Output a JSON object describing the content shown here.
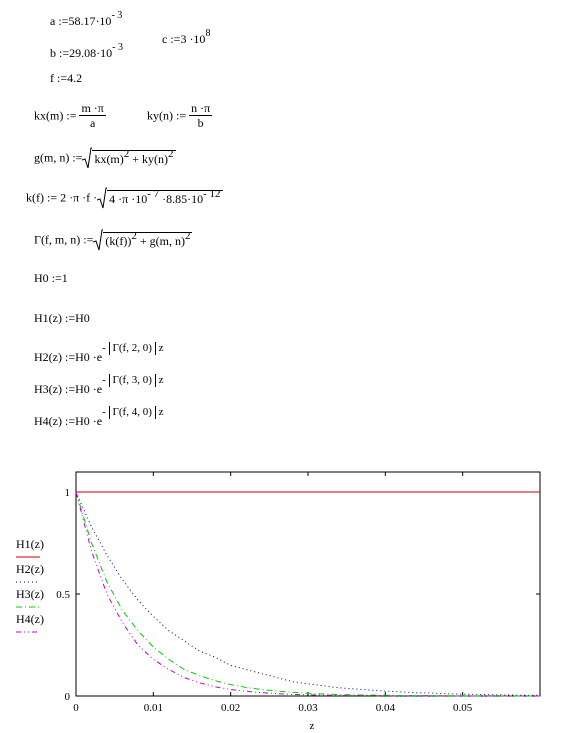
{
  "definitions": {
    "a": {
      "lhs": "a :=",
      "mant": "58.17",
      "dot": "·10",
      "exp": "- 3"
    },
    "b": {
      "lhs": "b :=",
      "mant": "29.08",
      "dot": "·10",
      "exp": "- 3"
    },
    "c": {
      "lhs": "c :=",
      "mant": "3",
      "dot": " ·10",
      "exp": "8"
    },
    "f": {
      "lhs": "f :=",
      "value": "4.2"
    },
    "kx": {
      "lhs": "kx(m) :=",
      "num": "m ·π",
      "den": "a"
    },
    "ky": {
      "lhs": "ky(n) :=",
      "num": "n ·π",
      "den": "b"
    },
    "g": {
      "lhs": "g(m, n) :=",
      "t1": "kx(m)",
      "e1": "2",
      "plus": " + ky(n)",
      "e2": "2"
    },
    "k": {
      "lhs": "k(f) :=",
      "pre": "2 ·π ·f ·",
      "r1": "4 ·π ·10",
      "e1": "- 7",
      "r2": " ·8.85·10",
      "e2": "- 12"
    },
    "Gamma": {
      "lhs": "Γ(f, m, n) :=",
      "t1": "(k(f))",
      "e1": "2",
      "plus": " + g(m, n)",
      "e2": "2"
    },
    "H0": {
      "lhs": "H0 :=",
      "value": "1"
    },
    "H1": {
      "lhs": "H1(z) :=",
      "rhs": "H0"
    },
    "H2": {
      "lhs": "H2(z) :=",
      "pre": "H0 ·e",
      "minus": "-",
      "arg": "Γ(f, 2, 0)",
      "z": "z"
    },
    "H3": {
      "lhs": "H3(z) :=",
      "pre": "H0 ·e",
      "minus": "-",
      "arg": "Γ(f, 3, 0)",
      "z": "z"
    },
    "H4": {
      "lhs": "H4(z) :=",
      "pre": "H0 ·e",
      "minus": "-",
      "arg": "Γ(f, 4, 0)",
      "z": "z"
    }
  },
  "chart_data": {
    "type": "line",
    "xlabel": "z",
    "ylabel": "",
    "xlim": [
      0,
      0.06
    ],
    "ylim": [
      0,
      1
    ],
    "x_ticks": [
      "0",
      "0.01",
      "0.02",
      "0.03",
      "0.04",
      "0.05"
    ],
    "y_ticks": [
      "0",
      "0.5",
      "1"
    ],
    "legend_placement": "left",
    "grid": false,
    "x": [
      0,
      0.002,
      0.004,
      0.006,
      0.008,
      0.01,
      0.012,
      0.014,
      0.016,
      0.018,
      0.02,
      0.022,
      0.024,
      0.026,
      0.028,
      0.03,
      0.032,
      0.034,
      0.036,
      0.038,
      0.04,
      0.042,
      0.044,
      0.046,
      0.048,
      0.05,
      0.052,
      0.054,
      0.056,
      0.058,
      0.06
    ],
    "series": [
      {
        "name": "H1(z)",
        "color": "#cc0000",
        "style": "solid",
        "values": [
          1,
          1,
          1,
          1,
          1,
          1,
          1,
          1,
          1,
          1,
          1,
          1,
          1,
          1,
          1,
          1,
          1,
          1,
          1,
          1,
          1,
          1,
          1,
          1,
          1,
          1,
          1,
          1,
          1,
          1,
          1
        ]
      },
      {
        "name": "H2(z)",
        "color": "#00008b",
        "style": "dotted",
        "values": [
          1,
          0.83,
          0.69,
          0.57,
          0.47,
          0.39,
          0.32,
          0.27,
          0.22,
          0.19,
          0.15,
          0.13,
          0.11,
          0.09,
          0.07,
          0.06,
          0.05,
          0.04,
          0.035,
          0.029,
          0.024,
          0.02,
          0.016,
          0.014,
          0.011,
          0.009,
          0.008,
          0.006,
          0.005,
          0.004,
          0.004
        ]
      },
      {
        "name": "H3(z)",
        "color": "#00cc00",
        "style": "dashdot",
        "values": [
          1,
          0.75,
          0.56,
          0.42,
          0.32,
          0.24,
          0.18,
          0.13,
          0.1,
          0.075,
          0.056,
          0.042,
          0.032,
          0.024,
          0.018,
          0.013,
          0.01,
          0.0075,
          0.0056,
          0.0042,
          0.0032,
          0.0024,
          0.0018,
          0.0013,
          0.001,
          0.0008,
          0.0006,
          0.0004,
          0.0003,
          0.0002,
          0.0002
        ]
      },
      {
        "name": "H4(z)",
        "color": "#cc00cc",
        "style": "dashdotdot",
        "values": [
          1,
          0.71,
          0.5,
          0.36,
          0.25,
          0.18,
          0.13,
          0.09,
          0.064,
          0.045,
          0.032,
          0.023,
          0.016,
          0.012,
          0.008,
          0.006,
          0.004,
          0.003,
          0.002,
          0.0015,
          0.001,
          0.0007,
          0.0005,
          0.0004,
          0.0003,
          0.0002,
          0.0001,
          0.0001,
          0.0001,
          0,
          0
        ]
      }
    ]
  }
}
